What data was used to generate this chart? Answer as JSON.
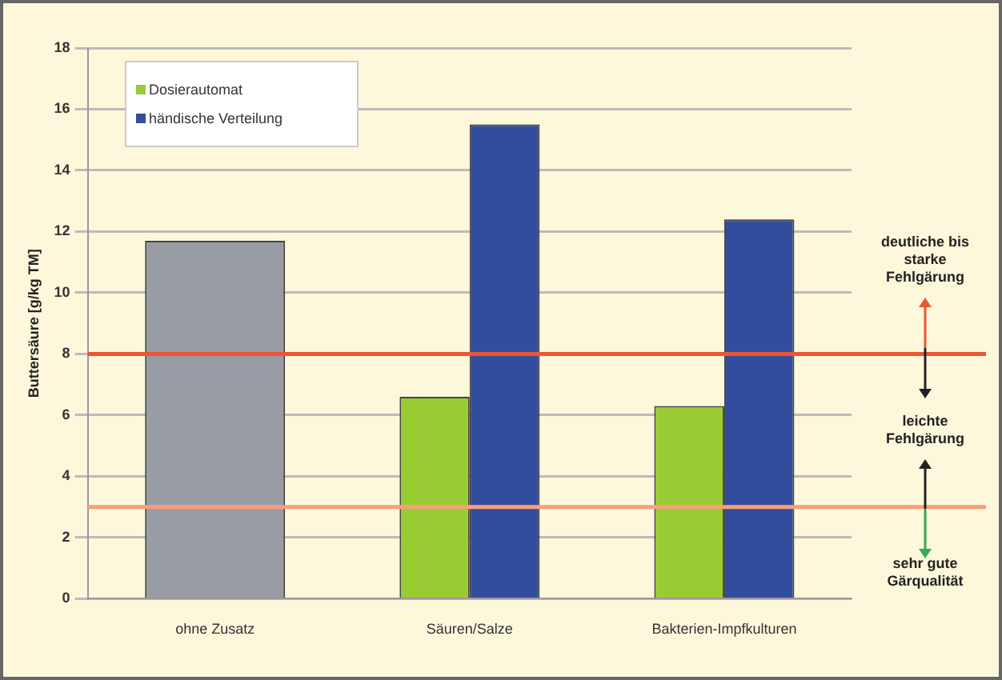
{
  "chart_data": {
    "type": "bar",
    "ylabel": "Buttersäure [g/kg TM]",
    "categories": [
      "ohne Zusatz",
      "Säuren/Salze",
      "Bakterien-Impfkulturen"
    ],
    "series": [
      {
        "name": "Dosierautomat",
        "color": "#99cc33",
        "values": [
          null,
          6.6,
          6.3
        ]
      },
      {
        "name": "händische Verteilung",
        "color": "#334d9e",
        "values": [
          null,
          15.5,
          12.4
        ]
      },
      {
        "color": "#999da3",
        "values": [
          11.7,
          null,
          null
        ]
      }
    ],
    "ylim": [
      0,
      18
    ],
    "yticks": [
      0,
      2,
      4,
      6,
      8,
      10,
      12,
      14,
      16,
      18
    ],
    "grid": "y",
    "legend": "top left",
    "ref_lines": [
      {
        "axis": "y",
        "value": 8,
        "color": "#ee5533"
      },
      {
        "axis": "y",
        "value": 3,
        "color": "#f7a07a"
      }
    ],
    "annotations": [
      "deutliche bis starke Fehlgärung",
      "leichte Fehlgärung",
      "sehr gute Gärqualität"
    ]
  }
}
